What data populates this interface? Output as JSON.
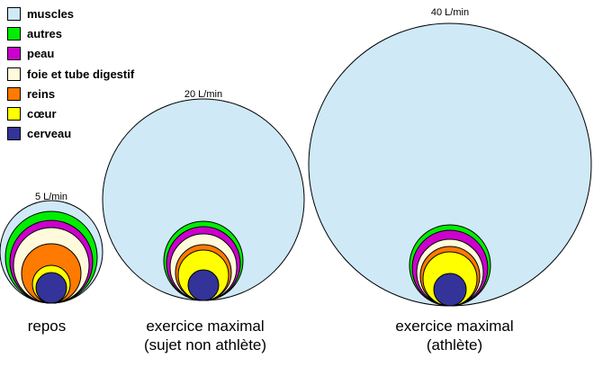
{
  "legend": [
    {
      "label": "muscles",
      "color": "#cfe9f7"
    },
    {
      "label": "autres",
      "color": "#00ee00"
    },
    {
      "label": "peau",
      "color": "#cc00cc"
    },
    {
      "label": "foie et tube digestif",
      "color": "#fffadc"
    },
    {
      "label": "reins",
      "color": "#ff7a00"
    },
    {
      "label": "cœur",
      "color": "#ffff00"
    },
    {
      "label": "cerveau",
      "color": "#333399"
    }
  ],
  "chart_data": {
    "type": "nested-circles",
    "series": [
      "muscles",
      "autres",
      "peau",
      "foie et tube digestif",
      "reins",
      "cœur",
      "cerveau"
    ],
    "conditions": [
      {
        "flow_label": "5 L/min",
        "title": "repos",
        "subtitle": ""
      },
      {
        "flow_label": "20 L/min",
        "title": "exercice maximal",
        "subtitle": "(sujet non athlète)"
      },
      {
        "flow_label": "40 L/min",
        "title": "exercice maximal",
        "subtitle": "(athlète)"
      }
    ]
  }
}
